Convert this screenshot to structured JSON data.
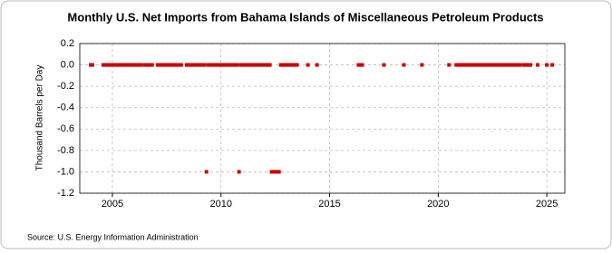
{
  "chart_data": {
    "type": "scatter",
    "title": "Monthly U.S. Net Imports from Bahama Islands of Miscellaneous Petroleum Products",
    "y_label": "Thousand Barrels per Day",
    "source": "Source: U.S. Energy Information Administration",
    "xlim": [
      2003.5,
      2025.83
    ],
    "xticks": [
      2005,
      2010,
      2015,
      2020,
      2025
    ],
    "ylim": [
      -1.2,
      0.2
    ],
    "yticks": [
      0.2,
      {
        "value": 0,
        "label": "0.0"
      },
      -0.2,
      -0.4,
      -0.6,
      -0.8,
      {
        "value": -1,
        "label": "-1.0"
      },
      -1.2
    ],
    "grid": true,
    "series": [
      {
        "color": "#cc0000",
        "x": [
          2004.0,
          2004.08,
          2004.58,
          2004.67,
          2004.75,
          2004.83,
          2004.92,
          2005.0,
          2005.08,
          2005.17,
          2005.25,
          2005.33,
          2005.42,
          2005.5,
          2005.58,
          2005.67,
          2005.75,
          2005.83,
          2005.92,
          2006.0,
          2006.08,
          2006.17,
          2006.25,
          2006.33,
          2006.5,
          2006.58,
          2006.67,
          2006.75,
          2006.83,
          2007.08,
          2007.17,
          2007.25,
          2007.33,
          2007.42,
          2007.5,
          2007.58,
          2007.67,
          2007.75,
          2007.83,
          2007.92,
          2008.0,
          2008.08,
          2008.17,
          2008.42,
          2008.5,
          2008.58,
          2008.67,
          2008.75,
          2008.83,
          2008.92,
          2009.0,
          2009.08,
          2009.17,
          2009.25,
          2009.33,
          2009.42,
          2009.5,
          2009.58,
          2009.67,
          2009.75,
          2009.83,
          2009.92,
          2010.0,
          2010.08,
          2010.17,
          2010.25,
          2010.33,
          2010.42,
          2010.5,
          2010.58,
          2010.67,
          2010.75,
          2010.83,
          2010.92,
          2011.0,
          2011.08,
          2011.17,
          2011.25,
          2011.33,
          2011.42,
          2011.5,
          2011.58,
          2011.67,
          2011.75,
          2011.83,
          2011.92,
          2012.0,
          2012.08,
          2012.17,
          2012.25,
          2012.33,
          2012.42,
          2012.5,
          2012.58,
          2012.67,
          2012.75,
          2012.83,
          2012.92,
          2013.0,
          2013.08,
          2013.17,
          2013.25,
          2013.33,
          2013.42,
          2013.5,
          2014.0,
          2014.42,
          2016.33,
          2016.42,
          2016.5,
          2017.5,
          2018.42,
          2019.25,
          2020.5,
          2020.83,
          2020.92,
          2021.0,
          2021.08,
          2021.17,
          2021.25,
          2021.33,
          2021.42,
          2021.5,
          2021.58,
          2021.67,
          2021.75,
          2021.83,
          2021.92,
          2022.0,
          2022.08,
          2022.17,
          2022.25,
          2022.33,
          2022.42,
          2022.5,
          2022.58,
          2022.67,
          2022.75,
          2022.83,
          2022.92,
          2023.0,
          2023.08,
          2023.17,
          2023.25,
          2023.33,
          2023.42,
          2023.5,
          2023.58,
          2023.67,
          2023.75,
          2023.92,
          2024.0,
          2024.08,
          2024.17,
          2024.25,
          2024.58,
          2025.0,
          2025.25
        ],
        "values": [
          0,
          0,
          0,
          0,
          0,
          0,
          0,
          0,
          0,
          0,
          0,
          0,
          0,
          0,
          0,
          0,
          0,
          0,
          0,
          0,
          0,
          0,
          0,
          0,
          0,
          0,
          0,
          0,
          0,
          0,
          0,
          0,
          0,
          0,
          0,
          0,
          0,
          0,
          0,
          0,
          0,
          0,
          0,
          0,
          0,
          0,
          0,
          0,
          0,
          0,
          0,
          0,
          0,
          0,
          -1,
          0,
          0,
          0,
          0,
          0,
          0,
          0,
          0,
          0,
          0,
          0,
          0,
          0,
          0,
          0,
          0,
          0,
          -1,
          0,
          0,
          0,
          0,
          0,
          0,
          0,
          0,
          0,
          0,
          0,
          0,
          0,
          0,
          0,
          0,
          0,
          -1,
          -1,
          -1,
          -1,
          -1,
          0,
          0,
          0,
          0,
          0,
          0,
          0,
          0,
          0,
          0,
          0,
          0,
          0,
          0,
          0,
          0,
          0,
          0,
          0,
          0,
          0,
          0,
          0,
          0,
          0,
          0,
          0,
          0,
          0,
          0,
          0,
          0,
          0,
          0,
          0,
          0,
          0,
          0,
          0,
          0,
          0,
          0,
          0,
          0,
          0,
          0,
          0,
          0,
          0,
          0,
          0,
          0,
          0,
          0,
          0,
          0,
          0,
          0,
          0,
          0,
          0,
          0,
          0
        ]
      }
    ]
  }
}
